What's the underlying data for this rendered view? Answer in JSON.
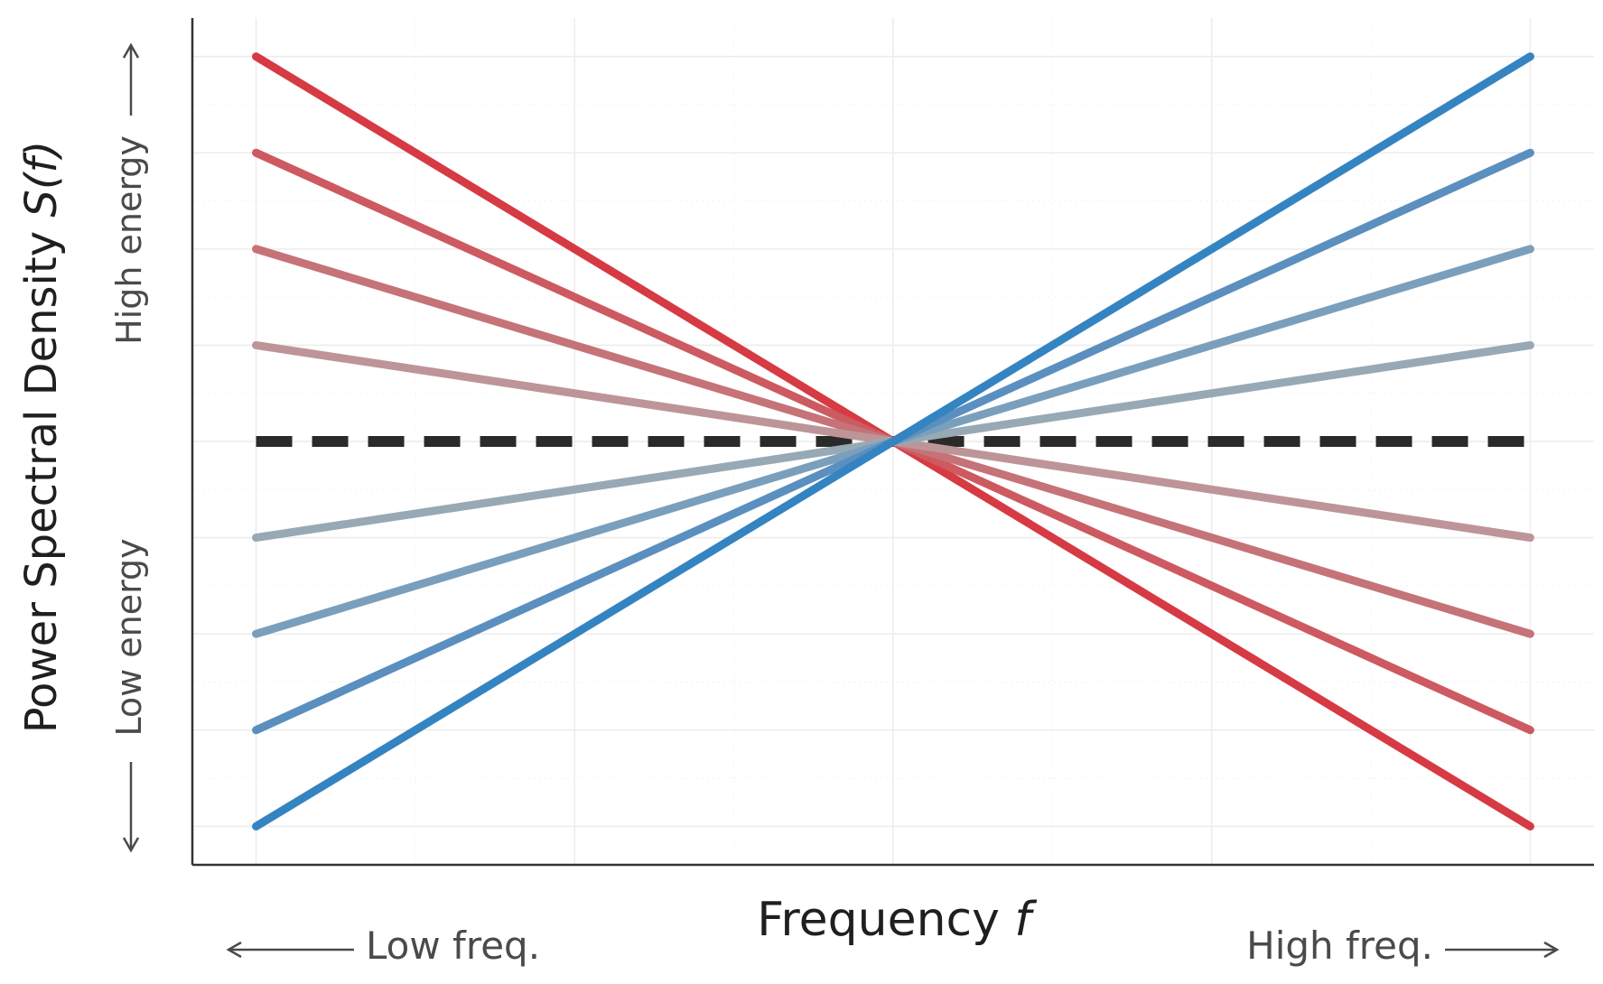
{
  "chart_data": {
    "type": "line",
    "xlabel": "Frequency",
    "xlabel_symbol": "f",
    "ylabel": "Power Spectral Density",
    "ylabel_symbol": "S(f)",
    "x_hints": {
      "low": "Low freq.",
      "high": "High freq."
    },
    "y_hints": {
      "low": "Low energy",
      "high": "High energy"
    },
    "x": [
      0,
      1
    ],
    "xlim": [
      -0.05,
      1.05
    ],
    "ylim": [
      -1.1,
      1.1
    ],
    "grid": true,
    "ticks_visible": false,
    "series": [
      {
        "values": [
          1.0,
          -1.0
        ],
        "color": "#d63a43"
      },
      {
        "values": [
          0.75,
          -0.75
        ],
        "color": "#cd5a61"
      },
      {
        "values": [
          0.5,
          -0.5
        ],
        "color": "#c57378"
      },
      {
        "values": [
          0.25,
          -0.25
        ],
        "color": "#bd9598"
      },
      {
        "values": [
          0.0,
          0.0
        ],
        "color": "#2a2a2a",
        "style": "dashed"
      },
      {
        "values": [
          -0.25,
          0.25
        ],
        "color": "#97a9b5"
      },
      {
        "values": [
          -0.5,
          0.5
        ],
        "color": "#7a9fbc"
      },
      {
        "values": [
          -0.75,
          0.75
        ],
        "color": "#5a8fbf"
      },
      {
        "values": [
          -1.0,
          1.0
        ],
        "color": "#3484c2"
      }
    ]
  }
}
